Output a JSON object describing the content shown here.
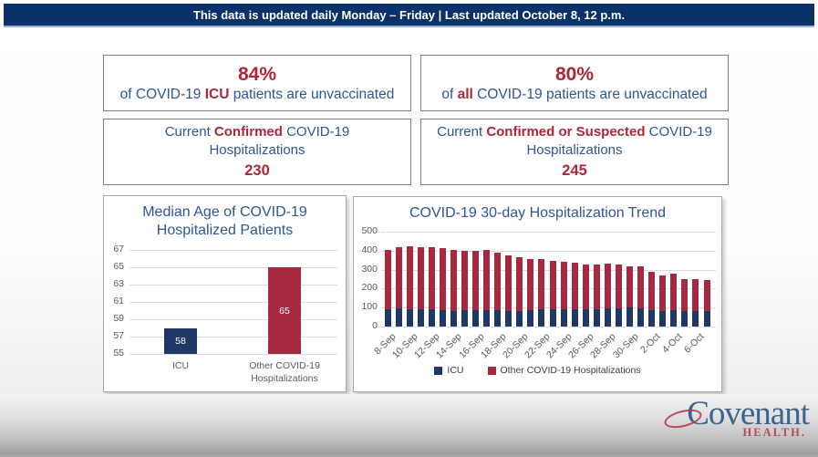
{
  "banner": {
    "text": "This data is updated daily Monday – Friday | Last updated October 8, 12 p.m."
  },
  "colors": {
    "banner_navy": "#0A3168",
    "bar_navy": "#1F3864",
    "bar_red": "#A52A41",
    "text_blue": "#2F5597",
    "text_red": "#AD2638",
    "tick_gray": "#595959"
  },
  "stat_boxes": {
    "icu_pct": {
      "value": "84%",
      "segments": [
        {
          "t": "of COVID-19 ",
          "c": "blue"
        },
        {
          "t": "ICU",
          "c": "red"
        },
        {
          "t": " patients are unvaccinated",
          "c": "blue"
        }
      ]
    },
    "all_pct": {
      "value": "80%",
      "segments": [
        {
          "t": "of ",
          "c": "blue"
        },
        {
          "t": "all",
          "c": "red"
        },
        {
          "t": " COVID-19 patients are unvaccinated",
          "c": "blue"
        }
      ]
    },
    "confirmed": {
      "line1_segments": [
        {
          "t": "Current ",
          "c": "blue"
        },
        {
          "t": "Confirmed",
          "c": "red"
        },
        {
          "t": " COVID-19",
          "c": "blue"
        }
      ],
      "line2": "Hospitalizations",
      "value": "230"
    },
    "suspected": {
      "line1_segments": [
        {
          "t": "Current ",
          "c": "blue"
        },
        {
          "t": "Confirmed or Suspected",
          "c": "red"
        },
        {
          "t": " COVID-19",
          "c": "blue"
        }
      ],
      "line2": "Hospitalizations",
      "value": "245"
    }
  },
  "chart_data": [
    {
      "type": "bar",
      "title": "Median Age of COVID-19 Hospitalized Patients",
      "categories": [
        "ICU",
        "Other COVID-19 Hospitalizations"
      ],
      "values": [
        58,
        65
      ],
      "bar_colors": [
        "#1F3864",
        "#A52A41"
      ],
      "xlabel": "",
      "ylabel": "",
      "ylim": [
        55,
        67
      ],
      "yticks": [
        55,
        57,
        59,
        61,
        63,
        65,
        67
      ],
      "grid": true,
      "data_labels": true
    },
    {
      "type": "stacked-bar",
      "title": "COVID-19 30-day Hospitalization Trend",
      "categories": [
        "8-Sep",
        "9-Sep",
        "10-Sep",
        "11-Sep",
        "12-Sep",
        "13-Sep",
        "14-Sep",
        "15-Sep",
        "16-Sep",
        "17-Sep",
        "18-Sep",
        "19-Sep",
        "20-Sep",
        "21-Sep",
        "22-Sep",
        "23-Sep",
        "24-Sep",
        "25-Sep",
        "26-Sep",
        "27-Sep",
        "28-Sep",
        "29-Sep",
        "30-Sep",
        "1-Oct",
        "2-Oct",
        "3-Oct",
        "4-Oct",
        "5-Oct",
        "6-Oct",
        "7-Oct"
      ],
      "x_tick_labels": [
        "8-Sep",
        "10-Sep",
        "12-Sep",
        "14-Sep",
        "16-Sep",
        "18-Sep",
        "20-Sep",
        "22-Sep",
        "24-Sep",
        "26-Sep",
        "28-Sep",
        "30-Sep",
        "2-Oct",
        "4-Oct",
        "6-Oct"
      ],
      "series": [
        {
          "name": "ICU",
          "color": "#1F3864",
          "values": [
            93,
            95,
            90,
            92,
            90,
            86,
            83,
            85,
            88,
            86,
            86,
            84,
            83,
            88,
            90,
            90,
            91,
            90,
            89,
            89,
            95,
            97,
            99,
            96,
            87,
            83,
            86,
            82,
            80,
            83
          ]
        },
        {
          "name": "Other COVID-19 Hospitalizations",
          "color": "#A52A41",
          "values": [
            312,
            322,
            334,
            325,
            326,
            326,
            323,
            316,
            312,
            320,
            304,
            290,
            284,
            268,
            264,
            254,
            252,
            246,
            240,
            239,
            236,
            231,
            217,
            221,
            203,
            185,
            192,
            168,
            168,
            162
          ]
        }
      ],
      "totals": [
        405,
        417,
        424,
        417,
        416,
        412,
        406,
        401,
        400,
        406,
        390,
        374,
        367,
        356,
        354,
        344,
        343,
        336,
        329,
        328,
        331,
        328,
        316,
        317,
        290,
        268,
        278,
        250,
        248,
        245
      ],
      "xlabel": "",
      "ylabel": "",
      "ylim": [
        0,
        500
      ],
      "yticks": [
        0,
        100,
        200,
        300,
        400,
        500
      ],
      "grid": true,
      "legend_position": "bottom"
    }
  ],
  "logo": {
    "name": "Covenant",
    "sub": "HEALTH."
  }
}
